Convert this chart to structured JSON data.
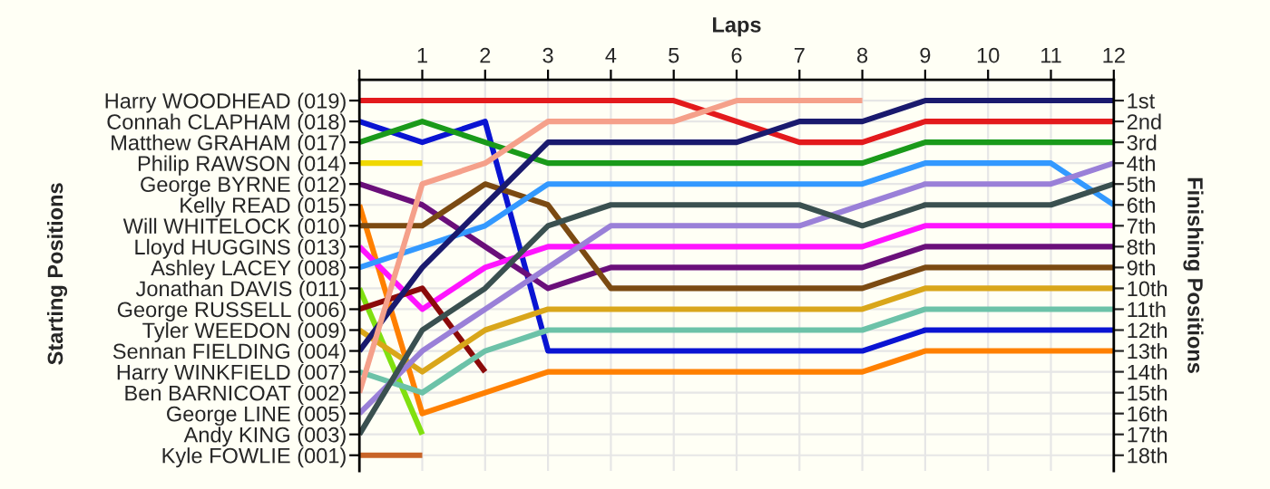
{
  "chart_data": {
    "type": "line",
    "xlabel": "Laps",
    "ylabel": "Finishing Positions",
    "annotations": [
      "Starting Positions"
    ],
    "x": [
      0,
      1,
      2,
      3,
      4,
      5,
      6,
      7,
      8,
      9,
      10,
      11,
      12
    ],
    "xlim": [
      0,
      12
    ],
    "xticks": [
      {
        "value": 0,
        "label": null
      },
      1,
      2,
      3,
      4,
      5,
      6,
      7,
      8,
      9,
      10,
      11,
      12
    ],
    "ylim": [
      18.75,
      0
    ],
    "y_categories": [
      "Harry WOODHEAD (019)",
      "Connah CLAPHAM (018)",
      "Matthew GRAHAM (017)",
      "Philip RAWSON (014)",
      "George BYRNE (012)",
      "Kelly READ (015)",
      "Will WHITELOCK (010)",
      "Lloyd HUGGINS (013)",
      "Ashley LACEY (008)",
      "Jonathan DAVIS (011)",
      "George RUSSELL (006)",
      "Tyler WEEDON (009)",
      "Sennan FIELDING (004)",
      "Harry WINKFIELD (007)",
      "Ben BARNICOAT (002)",
      "George LINE (005)",
      "Andy KING (003)",
      "Kyle FOWLIE (001)"
    ],
    "yticks": [
      {
        "value": 1,
        "label": "1st"
      },
      {
        "value": 2,
        "label": "2nd"
      },
      {
        "value": 3,
        "label": "3rd"
      },
      {
        "value": 4,
        "label": "4th"
      },
      {
        "value": 5,
        "label": "5th"
      },
      {
        "value": 6,
        "label": "6th"
      },
      {
        "value": 7,
        "label": "7th"
      },
      {
        "value": 8,
        "label": "8th"
      },
      {
        "value": 9,
        "label": "9th"
      },
      {
        "value": 10,
        "label": "10th"
      },
      {
        "value": 11,
        "label": "11th"
      },
      {
        "value": 12,
        "label": "12th"
      },
      {
        "value": 13,
        "label": "13th"
      },
      {
        "value": 14,
        "label": "14th"
      },
      {
        "value": 15,
        "label": "15th"
      },
      {
        "value": 16,
        "label": "16th"
      },
      {
        "value": 17,
        "label": "17th"
      },
      {
        "value": 18,
        "label": "18th"
      }
    ],
    "grid": true,
    "marker": "none",
    "line_style": "solid",
    "series": [
      {
        "color": "#e31a1c",
        "values": [
          1,
          1,
          1,
          1,
          1,
          1,
          2,
          3,
          3,
          2,
          2,
          2,
          2
        ]
      },
      {
        "color": "#0a14d2",
        "values": [
          2,
          3,
          2,
          13,
          13,
          13,
          13,
          13,
          13,
          12,
          12,
          12,
          12
        ]
      },
      {
        "color": "#1a9a1a",
        "values": [
          3,
          2,
          3,
          4,
          4,
          4,
          4,
          4,
          4,
          3,
          3,
          3,
          3
        ]
      },
      {
        "color": "#f0d800",
        "values": [
          4,
          4,
          null,
          null,
          null,
          null,
          null,
          null,
          null,
          null,
          null,
          null,
          null
        ]
      },
      {
        "color": "#6a0f7a",
        "values": [
          5,
          6,
          8,
          10,
          9,
          9,
          9,
          9,
          9,
          8,
          8,
          8,
          8
        ]
      },
      {
        "color": "#ff8000",
        "values": [
          6,
          16,
          15,
          14,
          14,
          14,
          14,
          14,
          14,
          13,
          13,
          13,
          13
        ]
      },
      {
        "color": "#7b4a12",
        "values": [
          7,
          7,
          5,
          6,
          10,
          10,
          10,
          10,
          10,
          9,
          9,
          9,
          9
        ]
      },
      {
        "color": "#ff14ff",
        "values": [
          8,
          11,
          9,
          8,
          8,
          8,
          8,
          8,
          8,
          7,
          7,
          7,
          7
        ]
      },
      {
        "color": "#3399ff",
        "values": [
          9,
          8,
          7,
          5,
          5,
          5,
          5,
          5,
          5,
          4,
          4,
          4,
          6
        ]
      },
      {
        "color": "#80e010",
        "values": [
          10,
          17,
          null,
          null,
          null,
          null,
          null,
          null,
          null,
          null,
          null,
          null,
          null
        ]
      },
      {
        "color": "#8b0a0a",
        "values": [
          11,
          10,
          14,
          null,
          null,
          null,
          null,
          null,
          null,
          null,
          null,
          null,
          null
        ]
      },
      {
        "color": "#d9a61a",
        "values": [
          12,
          14,
          12,
          11,
          11,
          11,
          11,
          11,
          11,
          10,
          10,
          10,
          10
        ]
      },
      {
        "color": "#1a1a6e",
        "values": [
          13,
          9,
          6,
          3,
          3,
          3,
          3,
          2,
          2,
          1,
          1,
          1,
          1
        ]
      },
      {
        "color": "#6cc2a8",
        "values": [
          14,
          15,
          13,
          12,
          12,
          12,
          12,
          12,
          12,
          11,
          11,
          11,
          11
        ]
      },
      {
        "color": "#f5a08a",
        "values": [
          15,
          5,
          4,
          2,
          2,
          2,
          1,
          1,
          1,
          null,
          null,
          null,
          null
        ]
      },
      {
        "color": "#9a80d8",
        "values": [
          16,
          13,
          11,
          9,
          7,
          7,
          7,
          7,
          6,
          5,
          5,
          5,
          4
        ]
      },
      {
        "color": "#3a5050",
        "values": [
          17,
          12,
          10,
          7,
          6,
          6,
          6,
          6,
          7,
          6,
          6,
          6,
          5
        ]
      },
      {
        "color": "#c86428",
        "values": [
          18,
          18,
          null,
          null,
          null,
          null,
          null,
          null,
          null,
          null,
          null,
          null,
          null
        ]
      }
    ]
  }
}
